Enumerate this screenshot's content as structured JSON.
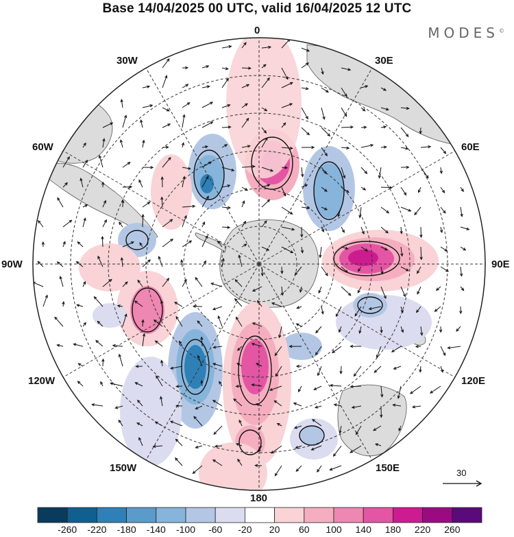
{
  "title": "Base 14/04/2025 00 UTC, valid 16/04/2025 12 UTC",
  "brand": "MODES",
  "brand_mark": "©",
  "longitude_labels": {
    "top": "0",
    "upper_left_1": "30W",
    "upper_right_1": "30E",
    "upper_left_2": "60W",
    "upper_right_2": "60E",
    "left": "90W",
    "right": "90E",
    "lower_left_2": "120W",
    "lower_right_2": "120E",
    "lower_left_1": "150W",
    "lower_right_1": "150E",
    "bottom": "180"
  },
  "reference_vector": {
    "label": "30"
  },
  "colorbar": {
    "colors": [
      "#0b3b5c",
      "#0f5f8f",
      "#2f80b7",
      "#5a9bc9",
      "#87b4da",
      "#b3c7e5",
      "#dcdcf0",
      "#ffffff",
      "#f9d3d6",
      "#f5aec0",
      "#ee87b1",
      "#e455a4",
      "#cc1c8f",
      "#9c0a82",
      "#5a0a7a"
    ],
    "tick_labels": [
      "-260",
      "-220",
      "-180",
      "-140",
      "-100",
      "-60",
      "-20",
      "20",
      "60",
      "100",
      "140",
      "180",
      "220",
      "260"
    ]
  },
  "map_colors": {
    "land": "#dcdcdc",
    "coast": "#555555",
    "grid": "#333333",
    "vector": "#111111",
    "contour": "#111111"
  }
}
